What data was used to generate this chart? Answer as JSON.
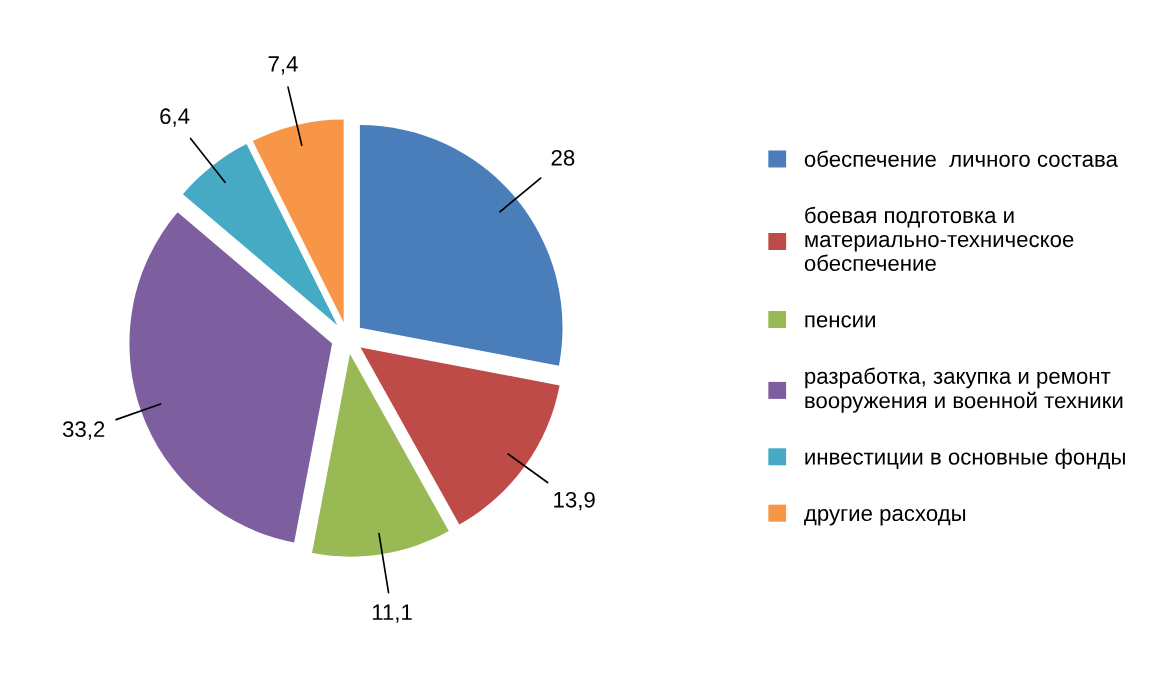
{
  "chart_data": {
    "type": "pie",
    "categories": [
      "обеспечение  личного состава",
      "боевая подготовка и материально-техническое обеспечение",
      "пенсии",
      "разработка, закупка и ремонт вооружения и военной техники",
      "инвестиции в основные фонды",
      "другие расходы"
    ],
    "values": [
      28,
      13.9,
      11.1,
      33.2,
      6.4,
      7.4
    ],
    "value_labels": [
      "28",
      "13,9",
      "11,1",
      "33,2",
      "6,4",
      "7,4"
    ],
    "colors": [
      "#4a7ebb",
      "#be4b48",
      "#98b954",
      "#7d5fa0",
      "#46aac5",
      "#f79646"
    ],
    "legend": "right"
  }
}
